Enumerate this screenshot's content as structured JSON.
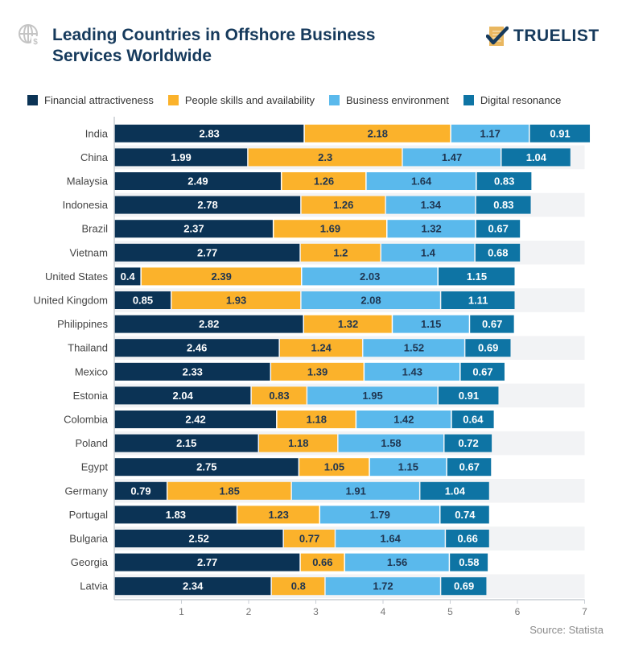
{
  "header": {
    "title": "Leading Countries in Offshore Business Services Worldwide",
    "logo_text": "TRUELIST",
    "icon": "globe-dollar-icon"
  },
  "colors": {
    "financial": "#0b3355",
    "people": "#fbb22b",
    "business": "#5ab9ec",
    "digital": "#0e74a4",
    "stripe": "#f2f3f5",
    "title": "#163a5c"
  },
  "source": "Source: Statista",
  "chart_data": {
    "type": "bar",
    "orientation": "horizontal",
    "stacked": true,
    "title": "Leading Countries in Offshore Business Services Worldwide",
    "xlabel": "",
    "ylabel": "",
    "xlim": [
      0,
      7
    ],
    "x_ticks": [
      "1",
      "2",
      "3",
      "4",
      "5",
      "6",
      "7"
    ],
    "legend_position": "top",
    "grid": false,
    "categories": [
      "India",
      "China",
      "Malaysia",
      "Indonesia",
      "Brazil",
      "Vietnam",
      "United States",
      "United Kingdom",
      "Philippines",
      "Thailand",
      "Mexico",
      "Estonia",
      "Colombia",
      "Poland",
      "Egypt",
      "Germany",
      "Portugal",
      "Bulgaria",
      "Georgia",
      "Latvia"
    ],
    "series": [
      {
        "name": "Financial attractiveness",
        "key": "financial",
        "values": [
          2.83,
          1.99,
          2.49,
          2.78,
          2.37,
          2.77,
          0.4,
          0.85,
          2.82,
          2.46,
          2.33,
          2.04,
          2.42,
          2.15,
          2.75,
          0.79,
          1.83,
          2.52,
          2.77,
          2.34
        ]
      },
      {
        "name": "People skills and availability",
        "key": "people",
        "values": [
          2.18,
          2.3,
          1.26,
          1.26,
          1.69,
          1.2,
          2.39,
          1.93,
          1.32,
          1.24,
          1.39,
          0.83,
          1.18,
          1.18,
          1.05,
          1.85,
          1.23,
          0.77,
          0.66,
          0.8
        ]
      },
      {
        "name": "Business environment",
        "key": "business",
        "values": [
          1.17,
          1.47,
          1.64,
          1.34,
          1.32,
          1.4,
          2.03,
          2.08,
          1.15,
          1.52,
          1.43,
          1.95,
          1.42,
          1.58,
          1.15,
          1.91,
          1.79,
          1.64,
          1.56,
          1.72
        ]
      },
      {
        "name": "Digital resonance",
        "key": "digital",
        "values": [
          0.91,
          1.04,
          0.83,
          0.83,
          0.67,
          0.68,
          1.15,
          1.11,
          0.67,
          0.69,
          0.67,
          0.91,
          0.64,
          0.72,
          0.67,
          1.04,
          0.74,
          0.66,
          0.58,
          0.69
        ]
      }
    ]
  }
}
